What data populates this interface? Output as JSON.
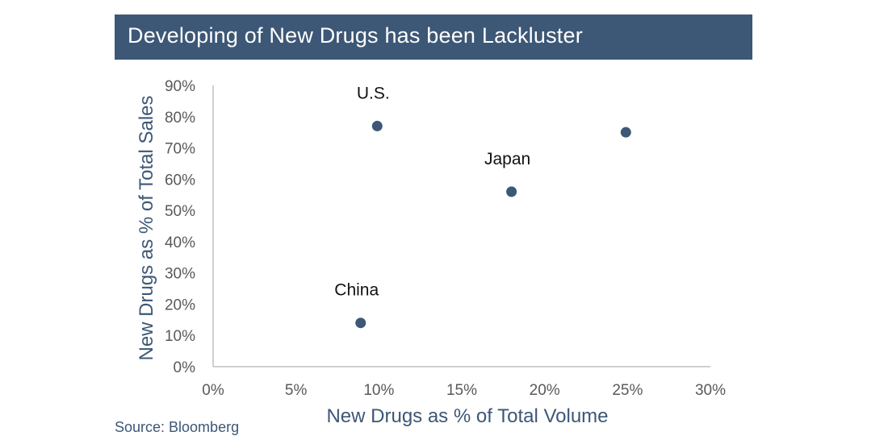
{
  "chart_data": {
    "type": "scatter",
    "title": "Developing of New Drugs has been Lackluster",
    "xlabel": "New Drugs as % of Total Volume",
    "ylabel": "New Drugs as % of Total Sales",
    "xlim": [
      0,
      30
    ],
    "ylim": [
      0,
      90
    ],
    "xticks": [
      "0%",
      "5%",
      "10%",
      "15%",
      "20%",
      "25%",
      "30%"
    ],
    "yticks": [
      "0%",
      "10%",
      "20%",
      "30%",
      "40%",
      "50%",
      "60%",
      "70%",
      "80%",
      "90%"
    ],
    "grid": false,
    "points": [
      {
        "label": "U.S.",
        "x": 9.9,
        "y": 77
      },
      {
        "label": "",
        "x": 24.9,
        "y": 75
      },
      {
        "label": "Japan",
        "x": 18.0,
        "y": 56
      },
      {
        "label": "China",
        "x": 8.9,
        "y": 14
      }
    ],
    "colors": {
      "marker": "#3d5776",
      "title_bg": "#3d5776",
      "axis": "#bfbfbf",
      "tick_text": "#595959"
    }
  },
  "source": "Source: Bloomberg"
}
